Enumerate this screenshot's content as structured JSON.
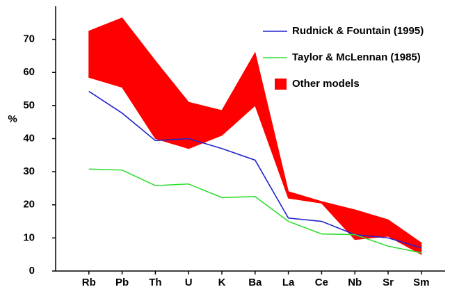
{
  "chart_data": {
    "type": "line",
    "categories": [
      "Rb",
      "Pb",
      "Th",
      "U",
      "K",
      "Ba",
      "La",
      "Ce",
      "Nb",
      "Sr",
      "Sm"
    ],
    "series": [
      {
        "name": "Rudnick & Fountain (1995)",
        "color": "#2222cc",
        "values": [
          54.3,
          47.7,
          39.4,
          40,
          37,
          33.5,
          16,
          15,
          11,
          10,
          7
        ]
      },
      {
        "name": "Taylor & McLennan (1985)",
        "color": "#33dd33",
        "values": [
          30.8,
          30.5,
          25.8,
          26.3,
          22.2,
          22.5,
          15,
          11.2,
          11,
          7.5,
          5.5
        ]
      }
    ],
    "band": {
      "name": "Other models",
      "color": "#ff0000",
      "upper": [
        72.5,
        76.5,
        63.5,
        51,
        48.5,
        66,
        24,
        21,
        18.5,
        15.5,
        8.5
      ],
      "lower": [
        58.5,
        55.5,
        40,
        37,
        41,
        50,
        22,
        20.5,
        9.5,
        10.5,
        5
      ]
    },
    "ylabel": "%",
    "ylim": [
      0,
      80
    ],
    "yticks": [
      0,
      10,
      20,
      30,
      40,
      50,
      60,
      70
    ],
    "legend": "top-right"
  }
}
